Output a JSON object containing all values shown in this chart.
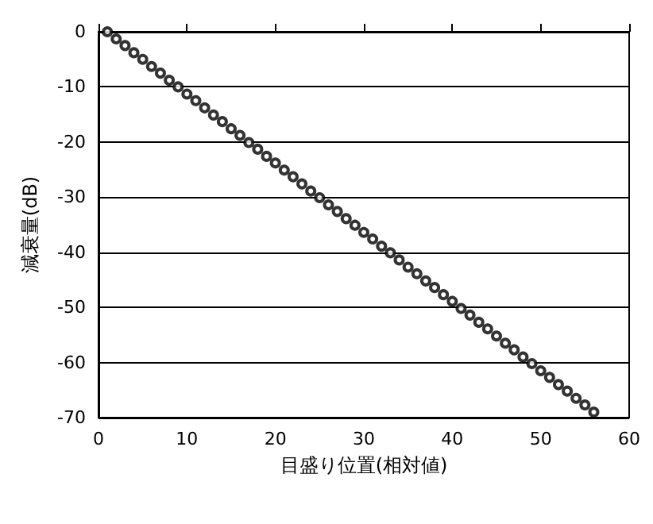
{
  "chart_data": {
    "type": "scatter",
    "xlabel": "目盛り位置(相対値)",
    "ylabel": "減衰量(dB)",
    "x": [
      1,
      2,
      3,
      4,
      5,
      6,
      7,
      8,
      9,
      10,
      11,
      12,
      13,
      14,
      15,
      16,
      17,
      18,
      19,
      20,
      21,
      22,
      23,
      24,
      25,
      26,
      27,
      28,
      29,
      30,
      31,
      32,
      33,
      34,
      35,
      36,
      37,
      38,
      39,
      40,
      41,
      42,
      43,
      44,
      45,
      46,
      47,
      48,
      49,
      50,
      51,
      52,
      53,
      54,
      55,
      56
    ],
    "values": [
      0,
      -1.3,
      -2.5,
      -3.8,
      -5.0,
      -6.3,
      -7.5,
      -8.8,
      -10.0,
      -11.3,
      -12.5,
      -13.8,
      -15.1,
      -16.3,
      -17.6,
      -18.8,
      -20.1,
      -21.3,
      -22.6,
      -23.8,
      -25.1,
      -26.3,
      -27.6,
      -28.9,
      -30.1,
      -31.4,
      -32.6,
      -33.9,
      -35.1,
      -36.4,
      -37.6,
      -38.9,
      -40.1,
      -41.4,
      -42.7,
      -43.9,
      -45.2,
      -46.4,
      -47.7,
      -48.9,
      -50.2,
      -51.4,
      -52.7,
      -53.9,
      -55.2,
      -56.5,
      -57.7,
      -59.0,
      -60.2,
      -61.5,
      -62.7,
      -64.0,
      -65.2,
      -66.5,
      -67.7,
      -69.0
    ],
    "color": "#000000",
    "marker": "circle",
    "grid": "y",
    "xlim": [
      0,
      60
    ],
    "xticks": [
      0,
      10,
      20,
      30,
      40,
      50,
      60
    ],
    "ylim": [
      -70,
      0
    ],
    "yticks": [
      -70,
      -60,
      -50,
      -40,
      -30,
      -20,
      -10,
      0
    ]
  }
}
